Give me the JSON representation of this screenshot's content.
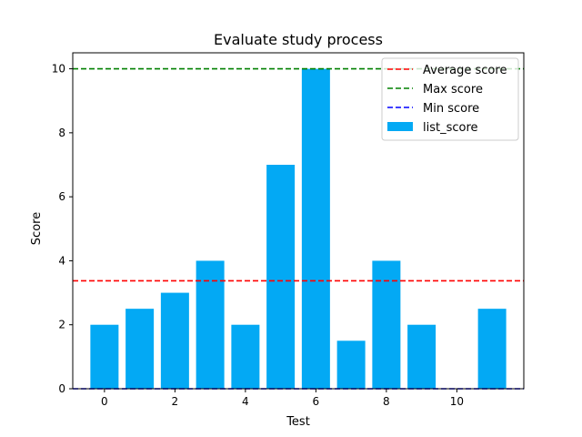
{
  "chart_data": {
    "type": "bar",
    "title": "Evaluate study process",
    "xlabel": "Test",
    "ylabel": "Score",
    "x": [
      0,
      1,
      2,
      3,
      4,
      5,
      6,
      7,
      8,
      9,
      10,
      11
    ],
    "series": [
      {
        "name": "list_score",
        "values": [
          2,
          2.5,
          3,
          4,
          2,
          7,
          10,
          1.5,
          4,
          2,
          0,
          2.5
        ],
        "color": "#03a9f4"
      }
    ],
    "reference_lines": [
      {
        "name": "Average score",
        "value": 3.375,
        "color": "#ff0000",
        "style": "dashed"
      },
      {
        "name": "Max score",
        "value": 10,
        "color": "#008000",
        "style": "dashed"
      },
      {
        "name": "Min score",
        "value": 0,
        "color": "#0000ff",
        "style": "dashed"
      }
    ],
    "xlim": [
      -0.9,
      11.9
    ],
    "ylim": [
      0,
      10.5
    ],
    "xticks": [
      0,
      2,
      4,
      6,
      8,
      10
    ],
    "yticks": [
      0,
      2,
      4,
      6,
      8,
      10
    ],
    "grid": false,
    "legend_position": "top-right",
    "legend_order": [
      "Average score",
      "Max score",
      "Min score",
      "list_score"
    ]
  }
}
